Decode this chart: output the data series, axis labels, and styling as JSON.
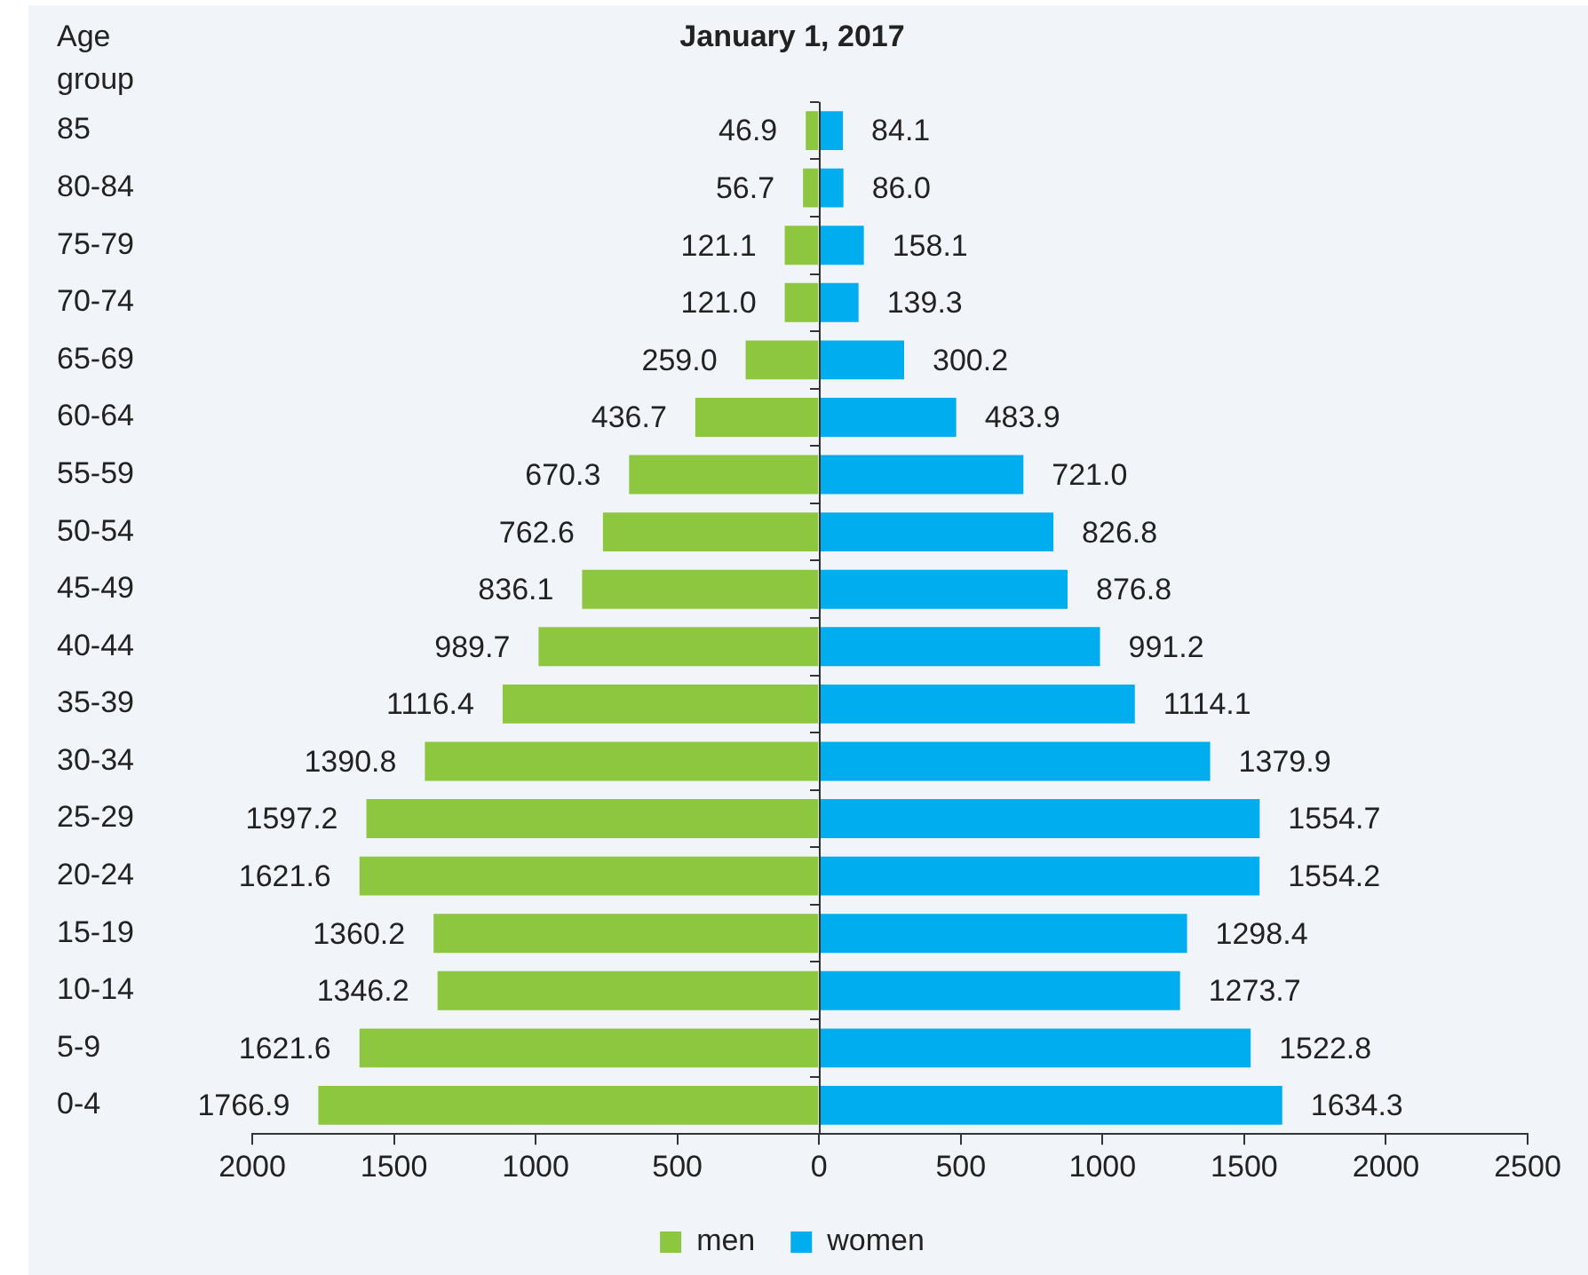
{
  "chart_data": {
    "type": "bar",
    "orientation": "horizontal",
    "title": "January 1, 2017",
    "ylabel": "Age group",
    "categories": [
      "85",
      "80-84",
      "75-79",
      "70-74",
      "65-69",
      "60-64",
      "55-59",
      "50-54",
      "45-49",
      "40-44",
      "35-39",
      "30-34",
      "25-29",
      "20-24",
      "15-19",
      "10-14",
      "5-9",
      "0-4"
    ],
    "series": [
      {
        "name": "men",
        "color": "#8dc63f",
        "values": [
          46.9,
          56.7,
          121.1,
          121.0,
          259.0,
          436.7,
          670.3,
          762.6,
          836.1,
          989.7,
          1116.4,
          1390.8,
          1597.2,
          1621.6,
          1360.2,
          1346.2,
          1621.6,
          1766.9
        ],
        "base": [
          -46.9,
          -56.7,
          -121.1,
          -121.0,
          -259.0,
          -436.7,
          -670.3,
          -762.6,
          -836.1,
          -989.7,
          -1116.4,
          -1390.8,
          -1597.2,
          -1621.6,
          -1360.2,
          -1346.2,
          -1621.6,
          -1766.9
        ],
        "value_labels": [
          "46.9",
          "56.7",
          "121.1",
          "121.0",
          "259.0",
          "436.7",
          "670.3",
          "762.6",
          "836.1",
          "989.7",
          "1116.4",
          "1390.8",
          "1597.2",
          "1621.6",
          "1360.2",
          "1346.2",
          "1621.6",
          "1766.9"
        ]
      },
      {
        "name": "women",
        "color": "#00aeef",
        "values": [
          84.1,
          86.0,
          158.1,
          139.3,
          300.2,
          483.9,
          721.0,
          826.8,
          876.8,
          991.2,
          1114.1,
          1379.9,
          1554.7,
          1554.2,
          1298.4,
          1273.7,
          1522.8,
          1634.3
        ],
        "value_labels": [
          "84.1",
          "86.0",
          "158.1",
          "139.3",
          "300.2",
          "483.9",
          "721.0",
          "826.8",
          "876.8",
          "991.2",
          "1114.1",
          "1379.9",
          "1554.7",
          "1554.2",
          "1298.4",
          "1273.7",
          "1522.8",
          "1634.3"
        ]
      }
    ],
    "xlim": [
      -2000,
      2500
    ],
    "xticks": [
      {
        "value": -2000,
        "label": "2000"
      },
      {
        "value": -1500,
        "label": "1500"
      },
      {
        "value": -1000,
        "label": "1000"
      },
      {
        "value": -500,
        "label": "500"
      },
      0,
      500,
      1000,
      1500,
      2000,
      2500
    ],
    "ref_lines": [
      {
        "axis": "x",
        "value": 0,
        "color": "#333333"
      }
    ],
    "grid": false,
    "legend": "bottom"
  }
}
